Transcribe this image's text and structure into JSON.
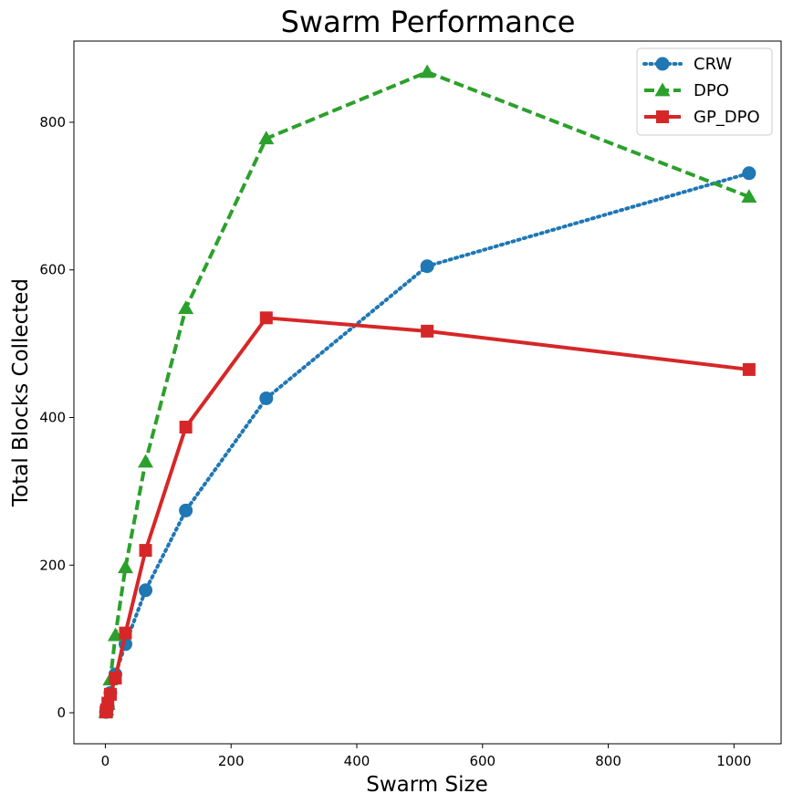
{
  "chart_data": {
    "type": "line",
    "title": "Swarm Performance",
    "xlabel": "Swarm Size",
    "ylabel": "Total Blocks Collected",
    "xlim": [
      -50,
      1075
    ],
    "ylim": [
      -42,
      910
    ],
    "xticks": [
      0,
      200,
      400,
      600,
      800,
      1000
    ],
    "yticks": [
      0,
      200,
      400,
      600,
      800
    ],
    "grid": false,
    "legend_position": "top-right",
    "series": [
      {
        "name": "CRW",
        "color": "#1f77b4",
        "linestyle": "dotted",
        "marker": "circle",
        "x": [
          1,
          2,
          4,
          8,
          16,
          32,
          64,
          128,
          256,
          512,
          1024
        ],
        "y": [
          1,
          3,
          8,
          27,
          52,
          93,
          166,
          274,
          426,
          605,
          731
        ]
      },
      {
        "name": "DPO",
        "color": "#2ca02c",
        "linestyle": "dashed",
        "marker": "triangle",
        "x": [
          1,
          2,
          4,
          8,
          16,
          32,
          64,
          128,
          256,
          512,
          1024
        ],
        "y": [
          1,
          4,
          12,
          45,
          105,
          197,
          340,
          548,
          778,
          868,
          699
        ]
      },
      {
        "name": "GP_DPO",
        "color": "#d62728",
        "linestyle": "solid",
        "marker": "square",
        "x": [
          1,
          2,
          4,
          8,
          16,
          32,
          64,
          128,
          256,
          512,
          1024
        ],
        "y": [
          1,
          4,
          13,
          25,
          47,
          108,
          220,
          387,
          535,
          517,
          465
        ]
      }
    ]
  }
}
